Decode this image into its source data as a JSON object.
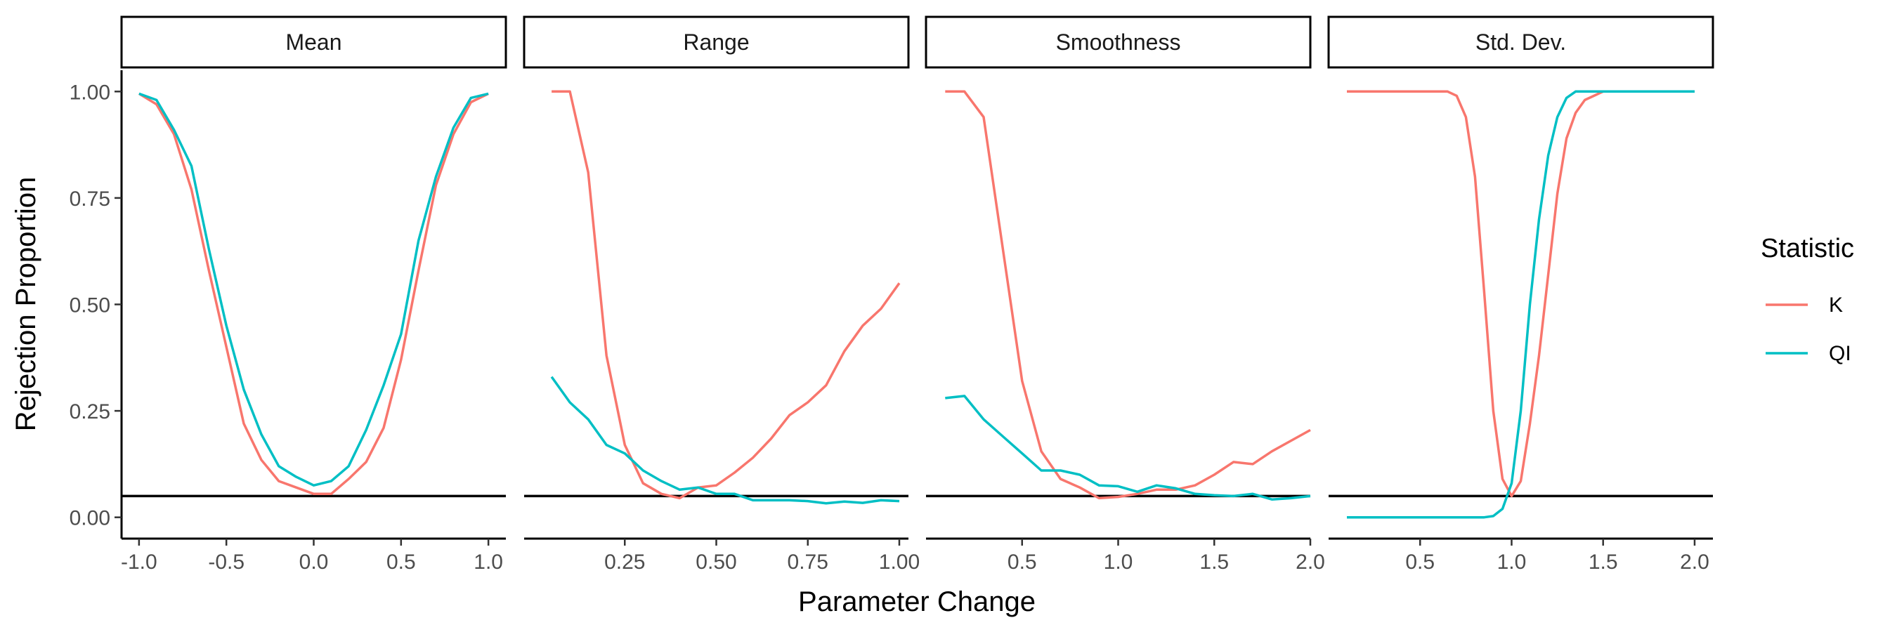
{
  "chart_data": {
    "type": "line",
    "ylabel": "Rejection Proportion",
    "xlabel": "Parameter Change",
    "ylim": [
      -0.05,
      1.05
    ],
    "yticks": [
      0,
      0.25,
      0.5,
      0.75,
      1.0
    ],
    "ytick_labels": [
      "0.00",
      "0.25",
      "0.50",
      "0.75",
      "1.00"
    ],
    "reference_line_y": 0.05,
    "grid": false,
    "legend": {
      "title": "Statistic",
      "placement": "right",
      "entries": [
        {
          "label": "K",
          "color": "#F8766D"
        },
        {
          "label": "QI",
          "color": "#00BFC4"
        }
      ]
    },
    "panels": [
      {
        "title": "Mean",
        "xlim": [
          -1.1,
          1.1
        ],
        "xticks": [
          -1,
          -0.5,
          0,
          0.5,
          1
        ],
        "xtick_labels": [
          "-1.0",
          "-0.5",
          "0.0",
          "0.5",
          "1.0"
        ],
        "series": [
          {
            "name": "K",
            "x": [
              -1.0,
              -0.9,
              -0.8,
              -0.7,
              -0.6,
              -0.5,
              -0.4,
              -0.3,
              -0.2,
              -0.1,
              0.0,
              0.1,
              0.2,
              0.3,
              0.4,
              0.5,
              0.6,
              0.7,
              0.8,
              0.9,
              1.0
            ],
            "y": [
              0.995,
              0.97,
              0.9,
              0.77,
              0.58,
              0.4,
              0.22,
              0.135,
              0.085,
              0.07,
              0.055,
              0.055,
              0.09,
              0.13,
              0.21,
              0.37,
              0.58,
              0.78,
              0.9,
              0.975,
              0.995
            ]
          },
          {
            "name": "QI",
            "x": [
              -1.0,
              -0.9,
              -0.8,
              -0.7,
              -0.6,
              -0.5,
              -0.4,
              -0.3,
              -0.2,
              -0.1,
              0.0,
              0.1,
              0.2,
              0.3,
              0.4,
              0.5,
              0.6,
              0.7,
              0.8,
              0.9,
              1.0
            ],
            "y": [
              0.995,
              0.98,
              0.91,
              0.825,
              0.63,
              0.45,
              0.3,
              0.195,
              0.12,
              0.095,
              0.075,
              0.085,
              0.12,
              0.205,
              0.31,
              0.43,
              0.65,
              0.8,
              0.915,
              0.985,
              0.995
            ]
          }
        ]
      },
      {
        "title": "Range",
        "xlim": [
          -0.025,
          1.025
        ],
        "xticks": [
          0.25,
          0.5,
          0.75,
          1.0
        ],
        "xtick_labels": [
          "0.25",
          "0.50",
          "0.75",
          "1.00"
        ],
        "series": [
          {
            "name": "K",
            "x": [
              0.05,
              0.1,
              0.15,
              0.2,
              0.25,
              0.3,
              0.35,
              0.4,
              0.45,
              0.5,
              0.55,
              0.6,
              0.65,
              0.7,
              0.75,
              0.8,
              0.85,
              0.9,
              0.95,
              1.0
            ],
            "y": [
              1.0,
              1.0,
              0.81,
              0.38,
              0.17,
              0.08,
              0.055,
              0.045,
              0.07,
              0.075,
              0.105,
              0.14,
              0.185,
              0.24,
              0.27,
              0.31,
              0.39,
              0.45,
              0.49,
              0.55
            ]
          },
          {
            "name": "QI",
            "x": [
              0.05,
              0.1,
              0.15,
              0.2,
              0.25,
              0.3,
              0.35,
              0.4,
              0.45,
              0.5,
              0.55,
              0.6,
              0.65,
              0.7,
              0.75,
              0.8,
              0.85,
              0.9,
              0.95,
              1.0
            ],
            "y": [
              0.33,
              0.27,
              0.23,
              0.17,
              0.15,
              0.11,
              0.085,
              0.065,
              0.07,
              0.055,
              0.055,
              0.04,
              0.04,
              0.04,
              0.038,
              0.033,
              0.037,
              0.034,
              0.04,
              0.038
            ]
          }
        ]
      },
      {
        "title": "Smoothness",
        "xlim": [
          0.0,
          2.0
        ],
        "xticks": [
          0.5,
          1.0,
          1.5,
          2.0
        ],
        "xtick_labels": [
          "0.5",
          "1.0",
          "1.5",
          "2.0"
        ],
        "series": [
          {
            "name": "K",
            "x": [
              0.1,
              0.2,
              0.3,
              0.4,
              0.5,
              0.6,
              0.7,
              0.8,
              0.9,
              1.0,
              1.1,
              1.2,
              1.3,
              1.4,
              1.5,
              1.6,
              1.7,
              1.8,
              1.9,
              2.0
            ],
            "y": [
              1.0,
              1.0,
              0.94,
              0.63,
              0.32,
              0.155,
              0.09,
              0.07,
              0.045,
              0.048,
              0.055,
              0.065,
              0.065,
              0.075,
              0.1,
              0.13,
              0.125,
              0.155,
              0.18,
              0.205
            ]
          },
          {
            "name": "QI",
            "x": [
              0.1,
              0.2,
              0.3,
              0.4,
              0.5,
              0.6,
              0.7,
              0.8,
              0.9,
              1.0,
              1.1,
              1.2,
              1.3,
              1.4,
              1.5,
              1.6,
              1.7,
              1.8,
              1.9,
              2.0
            ],
            "y": [
              0.28,
              0.285,
              0.23,
              0.19,
              0.15,
              0.11,
              0.11,
              0.1,
              0.075,
              0.073,
              0.06,
              0.075,
              0.068,
              0.055,
              0.052,
              0.05,
              0.055,
              0.042,
              0.045,
              0.05
            ]
          }
        ]
      },
      {
        "title": "Std. Dev.",
        "xlim": [
          0.0,
          2.1
        ],
        "xticks": [
          0.5,
          1.0,
          1.5,
          2.0
        ],
        "xtick_labels": [
          "0.5",
          "1.0",
          "1.5",
          "2.0"
        ],
        "series": [
          {
            "name": "K",
            "x": [
              0.1,
              0.25,
              0.5,
              0.65,
              0.7,
              0.75,
              0.8,
              0.85,
              0.9,
              0.95,
              1.0,
              1.05,
              1.1,
              1.15,
              1.2,
              1.25,
              1.3,
              1.35,
              1.4,
              1.45,
              1.5,
              1.6,
              2.0
            ],
            "y": [
              1.0,
              1.0,
              1.0,
              1.0,
              0.99,
              0.94,
              0.8,
              0.53,
              0.25,
              0.09,
              0.05,
              0.085,
              0.22,
              0.38,
              0.57,
              0.76,
              0.89,
              0.95,
              0.98,
              0.99,
              1.0,
              1.0,
              1.0
            ]
          },
          {
            "name": "QI",
            "x": [
              0.1,
              0.5,
              0.85,
              0.9,
              0.95,
              1.0,
              1.05,
              1.1,
              1.15,
              1.2,
              1.25,
              1.3,
              1.35,
              1.4,
              1.5,
              2.0
            ],
            "y": [
              0.0,
              0.0,
              0.0,
              0.003,
              0.02,
              0.08,
              0.25,
              0.5,
              0.7,
              0.85,
              0.94,
              0.985,
              1.0,
              1.0,
              1.0,
              1.0
            ]
          }
        ]
      }
    ]
  }
}
